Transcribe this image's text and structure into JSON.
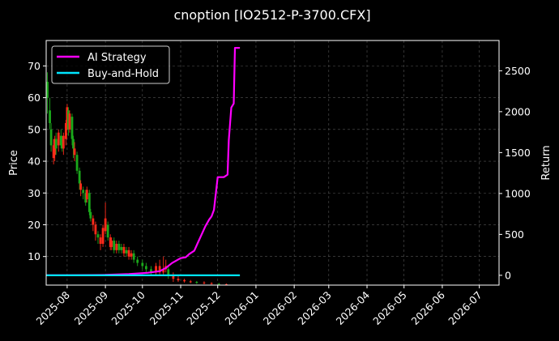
{
  "chart_data": {
    "type": "candlestick+line",
    "title": "cnoption [IO2512-P-3700.CFX]",
    "ylabel": "Price",
    "y2label": "Return",
    "ylim": [
      1,
      78
    ],
    "y2lim": [
      -120,
      2870
    ],
    "yticks": [
      "10",
      "20",
      "30",
      "40",
      "50",
      "60",
      "70"
    ],
    "y2ticks": [
      "0",
      "500",
      "1000",
      "1500",
      "2000",
      "2500"
    ],
    "xlim": [
      "2025-07-15",
      "2026-07-17"
    ],
    "xticks": [
      "2025-08",
      "2025-09",
      "2025-10",
      "2025-11",
      "2025-12",
      "2026-01",
      "2026-02",
      "2026-03",
      "2026-04",
      "2026-05",
      "2026-06",
      "2026-07"
    ],
    "grid": true,
    "legend_position": "upper-left",
    "colors": {
      "up": "#ff2a1a",
      "down": "#1ba81b",
      "ai": "#ff00ff",
      "bh": "#00e5ff",
      "grid": "#555555"
    },
    "series": [
      {
        "name": "AI Strategy",
        "color": "#ff00ff",
        "points": [
          [
            "2025-07-15",
            0
          ],
          [
            "2025-08-01",
            0
          ],
          [
            "2025-09-01",
            5
          ],
          [
            "2025-09-20",
            15
          ],
          [
            "2025-10-05",
            30
          ],
          [
            "2025-10-15",
            50
          ],
          [
            "2025-10-20",
            90
          ],
          [
            "2025-10-25",
            150
          ],
          [
            "2025-11-01",
            210
          ],
          [
            "2025-11-05",
            220
          ],
          [
            "2025-11-08",
            260
          ],
          [
            "2025-11-12",
            300
          ],
          [
            "2025-11-15",
            400
          ],
          [
            "2025-11-18",
            500
          ],
          [
            "2025-11-21",
            600
          ],
          [
            "2025-11-24",
            680
          ],
          [
            "2025-11-26",
            720
          ],
          [
            "2025-11-28",
            800
          ],
          [
            "2025-12-01",
            1200
          ],
          [
            "2025-12-06",
            1200
          ],
          [
            "2025-12-09",
            1230
          ],
          [
            "2025-12-10",
            1650
          ],
          [
            "2025-12-12",
            2050
          ],
          [
            "2025-12-14",
            2100
          ],
          [
            "2025-12-15",
            2780
          ],
          [
            "2025-12-19",
            2780
          ]
        ]
      },
      {
        "name": "Buy-and-Hold",
        "color": "#00e5ff",
        "points": [
          [
            "2025-07-15",
            0
          ],
          [
            "2025-12-19",
            0
          ]
        ]
      }
    ],
    "candles": [
      [
        "2025-07-16",
        60,
        65,
        55,
        68,
        "down"
      ],
      [
        "2025-07-18",
        56,
        52,
        50,
        60,
        "down"
      ],
      [
        "2025-07-19",
        50,
        45,
        43,
        52,
        "down"
      ],
      [
        "2025-07-21",
        45,
        41,
        39,
        47,
        "up"
      ],
      [
        "2025-07-22",
        42,
        47,
        40,
        48,
        "up"
      ],
      [
        "2025-07-23",
        47,
        44,
        42,
        49,
        "down"
      ],
      [
        "2025-07-25",
        45,
        49,
        43,
        50,
        "up"
      ],
      [
        "2025-07-27",
        48,
        45,
        44,
        50,
        "down"
      ],
      [
        "2025-07-28",
        46,
        44,
        43,
        48,
        "down"
      ],
      [
        "2025-07-29",
        44,
        48,
        42,
        49,
        "up"
      ],
      [
        "2025-07-31",
        47,
        52,
        45,
        53,
        "up"
      ],
      [
        "2025-08-01",
        52,
        57,
        50,
        58,
        "up"
      ],
      [
        "2025-08-02",
        56,
        50,
        48,
        57,
        "down"
      ],
      [
        "2025-08-03",
        50,
        55,
        49,
        56,
        "up"
      ],
      [
        "2025-08-05",
        54,
        47,
        45,
        55,
        "down"
      ],
      [
        "2025-08-06",
        47,
        44,
        41,
        48,
        "down"
      ],
      [
        "2025-08-07",
        44,
        42,
        40,
        46,
        "up"
      ],
      [
        "2025-08-09",
        42,
        37,
        36,
        43,
        "down"
      ],
      [
        "2025-08-11",
        37,
        33,
        31,
        38,
        "down"
      ],
      [
        "2025-08-12",
        33,
        31,
        29,
        34,
        "up"
      ],
      [
        "2025-08-14",
        31,
        30,
        28,
        32,
        "down"
      ],
      [
        "2025-08-16",
        30,
        27,
        26,
        31,
        "down"
      ],
      [
        "2025-08-17",
        28,
        31,
        27,
        32,
        "up"
      ],
      [
        "2025-08-19",
        30,
        24,
        23,
        31,
        "down"
      ],
      [
        "2025-08-20",
        24,
        22,
        21,
        25,
        "down"
      ],
      [
        "2025-08-22",
        22,
        20,
        18,
        23,
        "up"
      ],
      [
        "2025-08-24",
        20,
        17,
        15,
        21,
        "up"
      ],
      [
        "2025-08-26",
        17,
        16,
        14,
        18,
        "down"
      ],
      [
        "2025-08-28",
        16,
        14,
        12,
        17,
        "up"
      ],
      [
        "2025-08-30",
        14,
        19,
        13,
        20,
        "up"
      ],
      [
        "2025-09-01",
        18,
        22,
        17,
        27,
        "up"
      ],
      [
        "2025-09-03",
        20,
        16,
        15,
        21,
        "down"
      ],
      [
        "2025-09-05",
        16,
        13,
        12,
        17,
        "up"
      ],
      [
        "2025-09-06",
        13,
        15,
        12,
        16,
        "up"
      ],
      [
        "2025-09-08",
        15,
        12,
        11,
        16,
        "down"
      ],
      [
        "2025-09-10",
        12,
        14,
        11,
        15,
        "up"
      ],
      [
        "2025-09-12",
        14,
        12,
        11,
        15,
        "down"
      ],
      [
        "2025-09-14",
        12,
        13,
        11,
        14,
        "down"
      ],
      [
        "2025-09-16",
        13,
        11,
        10,
        14,
        "up"
      ],
      [
        "2025-09-18",
        11,
        12,
        10,
        13,
        "down"
      ],
      [
        "2025-09-20",
        12,
        10,
        9,
        13,
        "up"
      ],
      [
        "2025-09-22",
        10,
        11,
        9,
        12,
        "up"
      ],
      [
        "2025-09-24",
        11,
        9,
        8,
        12,
        "down"
      ],
      [
        "2025-09-27",
        9,
        8,
        7,
        10,
        "down"
      ],
      [
        "2025-10-01",
        8,
        7,
        6,
        9,
        "down"
      ],
      [
        "2025-10-04",
        7,
        6,
        5,
        8,
        "down"
      ],
      [
        "2025-10-08",
        6,
        5,
        4,
        7,
        "down"
      ],
      [
        "2025-10-12",
        5,
        7,
        4,
        8,
        "up"
      ],
      [
        "2025-10-15",
        7,
        5,
        4,
        9,
        "up"
      ],
      [
        "2025-10-18",
        5,
        6,
        4,
        10,
        "up"
      ],
      [
        "2025-10-20",
        6,
        7,
        5,
        9,
        "up"
      ],
      [
        "2025-10-22",
        6,
        4,
        3,
        7,
        "down"
      ],
      [
        "2025-10-26",
        4,
        3,
        2,
        5,
        "up"
      ],
      [
        "2025-10-30",
        3,
        2.5,
        2,
        4,
        "up"
      ],
      [
        "2025-11-04",
        2.6,
        2.2,
        1.8,
        3,
        "up"
      ],
      [
        "2025-11-09",
        2.2,
        1.9,
        1.6,
        2.6,
        "up"
      ],
      [
        "2025-11-14",
        2.0,
        1.7,
        1.4,
        2.3,
        "down"
      ],
      [
        "2025-11-20",
        1.8,
        1.6,
        1.3,
        2.2,
        "up"
      ],
      [
        "2025-11-26",
        1.6,
        1.4,
        1.2,
        1.9,
        "up"
      ],
      [
        "2025-12-02",
        1.4,
        1.3,
        1.1,
        1.7,
        "down"
      ],
      [
        "2025-12-08",
        1.3,
        1.2,
        1.05,
        1.5,
        "up"
      ]
    ]
  },
  "legend": [
    {
      "label": "AI Strategy",
      "color": "#ff00ff"
    },
    {
      "label": "Buy-and-Hold",
      "color": "#00e5ff"
    }
  ]
}
